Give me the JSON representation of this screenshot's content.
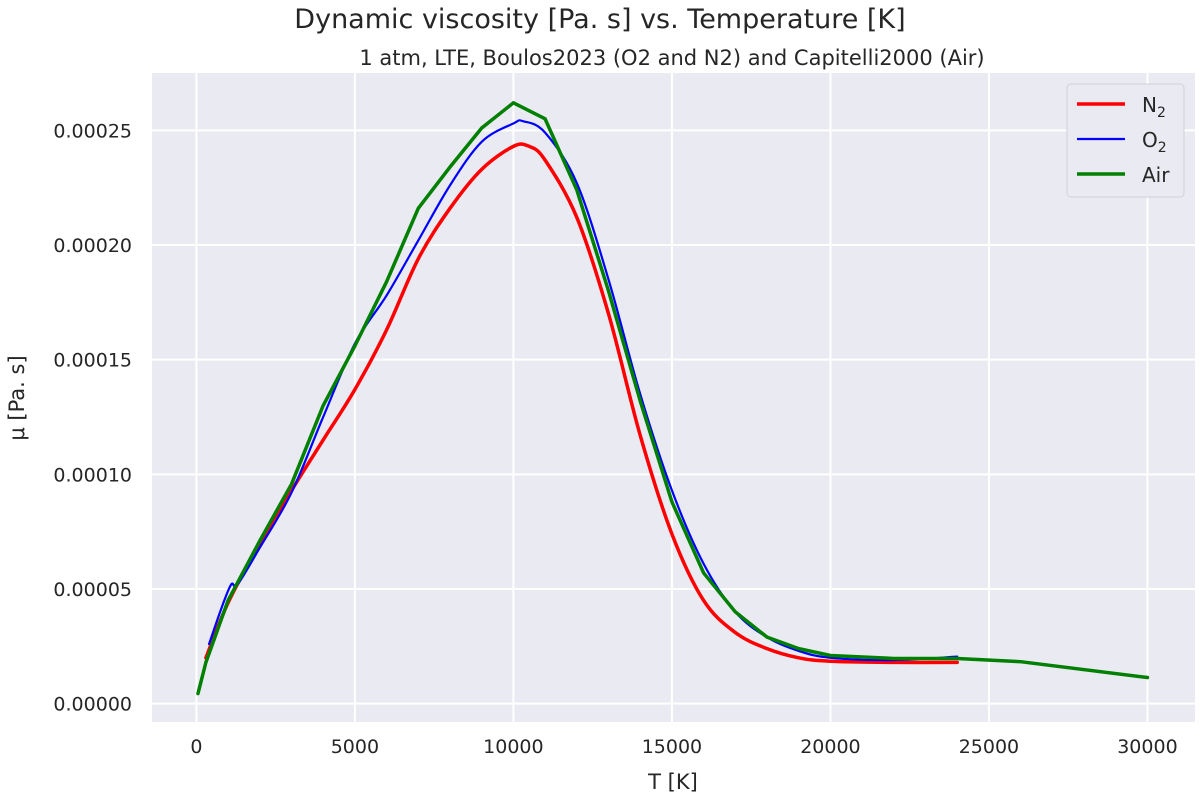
{
  "chart_data": {
    "type": "line",
    "title": "Dynamic viscosity [Pa. s] vs. Temperature [K]",
    "subtitle": "1 atm, LTE, Boulos2023 (O2 and N2) and Capitelli2000 (Air)",
    "xlabel": "T [K]",
    "ylabel": "μ [Pa. s]",
    "xlim": [
      -1400,
      31500
    ],
    "ylim": [
      -8e-06,
      0.000275
    ],
    "xticks": [
      0,
      5000,
      10000,
      15000,
      20000,
      25000,
      30000
    ],
    "xtick_labels": [
      "0",
      "5000",
      "10000",
      "15000",
      "20000",
      "25000",
      "30000"
    ],
    "yticks": [
      0,
      5e-05,
      0.0001,
      0.00015,
      0.0002,
      0.00025
    ],
    "ytick_labels": [
      "0.00000",
      "0.00005",
      "0.00010",
      "0.00015",
      "0.00020",
      "0.00025"
    ],
    "grid": true,
    "legend_position": "top-right",
    "series": [
      {
        "name": "N",
        "sub": "2",
        "color": "#ff0000",
        "width": 3.5,
        "x": [
          300,
          1000,
          2000,
          3000,
          4000,
          5000,
          6000,
          7000,
          8000,
          9000,
          10000,
          10500,
          11000,
          12000,
          13000,
          14000,
          15000,
          16000,
          17000,
          18000,
          19000,
          20000,
          22000,
          24000
        ],
        "y": [
          2e-05,
          4.4e-05,
          7e-05,
          9.3e-05,
          0.000115,
          0.000137,
          0.000163,
          0.000194,
          0.000216,
          0.000233,
          0.000243,
          0.000243,
          0.000237,
          0.000212,
          0.00017,
          0.000117,
          7.4e-05,
          4.5e-05,
          3.1e-05,
          2.4e-05,
          2e-05,
          1.85e-05,
          1.8e-05,
          1.8e-05
        ]
      },
      {
        "name": "O",
        "sub": "2",
        "color": "#0000ff",
        "width": 2.2,
        "x": [
          400,
          800,
          1100,
          1300,
          2000,
          3000,
          4000,
          5000,
          6000,
          7000,
          8000,
          9000,
          10000,
          10300,
          11000,
          12000,
          13000,
          14000,
          15000,
          16000,
          17000,
          18000,
          19000,
          20000,
          22000,
          24000
        ],
        "y": [
          2.6e-05,
          4.2e-05,
          5.2e-05,
          5.2e-05,
          6.8e-05,
          9.2e-05,
          0.000125,
          0.000157,
          0.000178,
          0.000202,
          0.000226,
          0.000245,
          0.000253,
          0.000254,
          0.000249,
          0.000227,
          0.000185,
          0.000135,
          9.3e-05,
          6.1e-05,
          4e-05,
          2.9e-05,
          2.3e-05,
          2e-05,
          1.9e-05,
          2.05e-05
        ]
      },
      {
        "name": "Air",
        "sub": "",
        "color": "#008000",
        "width": 3.5,
        "x": [
          50,
          300,
          1000,
          2000,
          3000,
          4000,
          5000,
          6000,
          7000,
          8000,
          9000,
          10000,
          11000,
          12000,
          13000,
          14000,
          15000,
          16000,
          17000,
          18000,
          19000,
          20000,
          22000,
          24000,
          26000,
          30000
        ],
        "y": [
          4.4e-06,
          1.8e-05,
          4.5e-05,
          7.1e-05,
          9.57e-05,
          0.00013,
          0.000156,
          0.000184,
          0.000216,
          0.000234,
          0.000251,
          0.000262,
          0.000255,
          0.000224,
          0.00018,
          0.000132,
          8.8e-05,
          5.7e-05,
          4e-05,
          2.9e-05,
          2.4e-05,
          2.1e-05,
          1.97e-05,
          1.97e-05,
          1.83e-05,
          1.14e-05
        ]
      }
    ]
  }
}
